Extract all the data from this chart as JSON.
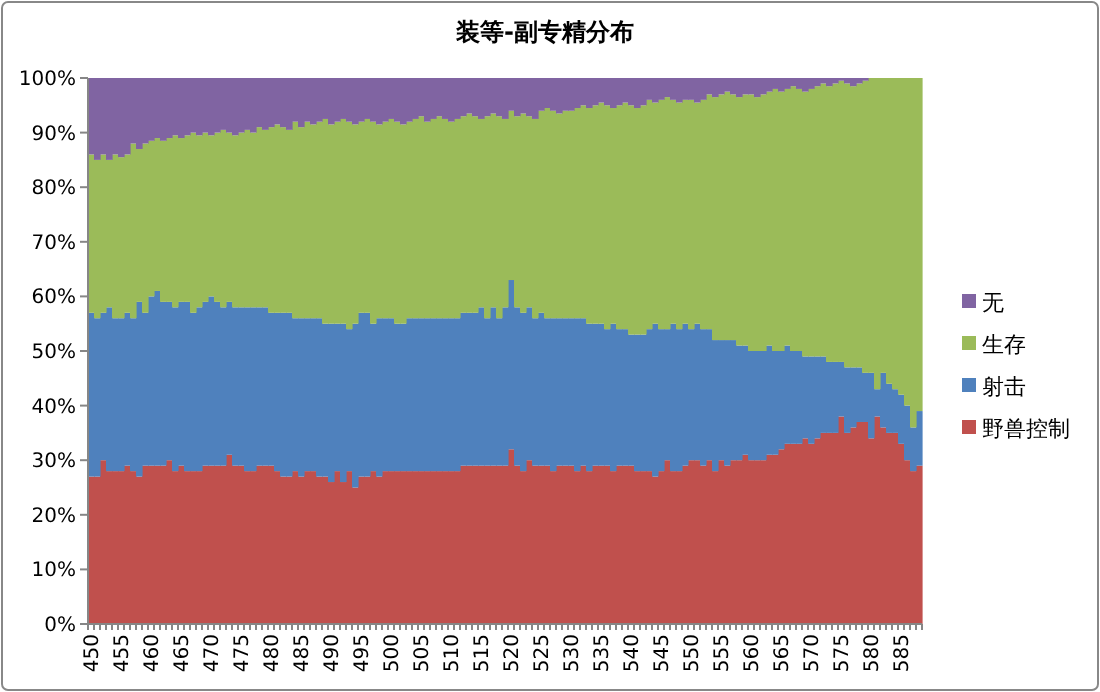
{
  "chart_data": {
    "type": "bar",
    "stacked": true,
    "title": "装等-副专精分布",
    "categories": [
      "450",
      null,
      null,
      null,
      null,
      "455",
      null,
      null,
      null,
      null,
      "460",
      null,
      null,
      null,
      null,
      "465",
      null,
      null,
      null,
      null,
      "470",
      null,
      null,
      null,
      null,
      "475",
      null,
      null,
      null,
      null,
      "480",
      null,
      null,
      null,
      null,
      "485",
      null,
      null,
      null,
      null,
      "490",
      null,
      null,
      null,
      null,
      "495",
      null,
      null,
      null,
      null,
      "500",
      null,
      null,
      null,
      null,
      "505",
      null,
      null,
      null,
      null,
      "510",
      null,
      null,
      null,
      null,
      "515",
      null,
      null,
      null,
      null,
      "520",
      null,
      null,
      null,
      null,
      "525",
      null,
      null,
      null,
      null,
      "530",
      null,
      null,
      null,
      null,
      "535",
      null,
      null,
      null,
      null,
      "540",
      null,
      null,
      null,
      null,
      "545",
      null,
      null,
      null,
      null,
      "550",
      null,
      null,
      null,
      null,
      "555",
      null,
      null,
      null,
      null,
      "560",
      null,
      null,
      null,
      null,
      "565",
      null,
      null,
      null,
      null,
      "570",
      null,
      null,
      null,
      null,
      "575",
      null,
      null,
      null,
      null,
      "580",
      null,
      null,
      null,
      null,
      "585",
      null,
      null,
      null
    ],
    "series": [
      {
        "name": "野兽控制",
        "color": "#c0504d",
        "values": [
          27,
          27,
          30,
          28,
          28,
          28,
          29,
          28,
          27,
          29,
          29,
          29,
          29,
          30,
          28,
          29,
          28,
          28,
          28,
          29,
          29,
          29,
          29,
          31,
          29,
          29,
          28,
          28,
          29,
          29,
          29,
          28,
          27,
          27,
          28,
          27,
          28,
          28,
          27,
          27,
          26,
          28,
          26,
          28,
          25,
          27,
          27,
          28,
          27,
          28,
          28,
          28,
          28,
          28,
          28,
          28,
          28,
          28,
          28,
          28,
          28,
          28,
          29,
          29,
          29,
          29,
          29,
          29,
          29,
          29,
          32,
          29,
          28,
          30,
          29,
          29,
          29,
          28,
          29,
          29,
          29,
          28,
          29,
          28,
          29,
          29,
          29,
          28,
          29,
          29,
          29,
          28,
          28,
          28,
          27,
          28,
          30,
          28,
          28,
          29,
          30,
          30,
          29,
          30,
          28,
          30,
          29,
          30,
          30,
          31,
          30,
          30,
          30,
          31,
          31,
          32,
          33,
          33,
          33,
          34,
          33,
          34,
          35,
          35,
          35,
          38,
          35,
          36,
          37,
          37,
          34,
          38,
          36,
          35,
          35,
          33,
          30,
          28,
          29
        ]
      },
      {
        "name": "射击",
        "color": "#4f81bd",
        "values": [
          30,
          29,
          27,
          30,
          28,
          28,
          28,
          28,
          32,
          28,
          31,
          32,
          30,
          29,
          30,
          30,
          31,
          29,
          30,
          30,
          31,
          30,
          29,
          28,
          29,
          29,
          30,
          30,
          29,
          29,
          28,
          29,
          30,
          30,
          28,
          29,
          28,
          28,
          29,
          28,
          29,
          27,
          29,
          26,
          30,
          30,
          30,
          27,
          29,
          28,
          28,
          27,
          27,
          28,
          28,
          28,
          28,
          28,
          28,
          28,
          28,
          28,
          28,
          28,
          28,
          29,
          27,
          29,
          27,
          29,
          31,
          29,
          29,
          28,
          27,
          28,
          27,
          28,
          27,
          27,
          27,
          28,
          27,
          27,
          26,
          26,
          25,
          27,
          25,
          25,
          24,
          25,
          25,
          26,
          28,
          26,
          24,
          27,
          26,
          26,
          24,
          25,
          25,
          24,
          24,
          22,
          23,
          22,
          21,
          20,
          20,
          20,
          20,
          20,
          19,
          18,
          18,
          17,
          17,
          15,
          16,
          15,
          14,
          13,
          13,
          10,
          12,
          11,
          10,
          9,
          12,
          5,
          10,
          9,
          8,
          9,
          10,
          8,
          10
        ]
      },
      {
        "name": "生存",
        "color": "#9bbb59",
        "values": [
          29,
          29,
          29,
          27,
          30,
          29.5,
          29,
          32,
          28,
          31,
          28.5,
          28,
          29.5,
          30,
          31.5,
          30,
          30.5,
          33,
          31.5,
          31,
          29.5,
          31,
          32.5,
          31,
          31.5,
          32,
          32.5,
          32,
          33,
          32.5,
          34,
          34.5,
          34,
          33.5,
          36,
          35,
          36,
          35.5,
          36,
          37.5,
          36.5,
          37,
          37.5,
          38,
          36.5,
          35,
          35.5,
          37,
          35.5,
          36,
          36.5,
          37,
          36.5,
          36,
          36.5,
          37,
          36,
          36.5,
          37,
          36.5,
          36,
          36.5,
          36,
          36.5,
          36,
          34.5,
          37,
          35.5,
          37,
          34.5,
          31,
          35,
          36.5,
          35,
          36.5,
          37,
          38.5,
          38,
          37.5,
          38,
          38,
          38.5,
          39,
          39.5,
          40,
          40.5,
          41,
          39.5,
          41,
          41.5,
          42,
          41.5,
          42,
          42,
          40.5,
          42,
          42.5,
          41,
          41.5,
          41,
          42,
          40.5,
          42,
          43,
          44.5,
          45,
          45.5,
          45,
          45.5,
          46,
          47,
          46.5,
          47,
          46.5,
          48,
          47.5,
          47,
          48.5,
          48,
          48.5,
          49,
          49.5,
          50,
          50.5,
          51,
          51.5,
          52,
          51.5,
          52,
          53.5,
          54,
          57,
          54,
          56,
          57,
          58,
          60,
          64,
          61
        ]
      },
      {
        "name": "无",
        "color": "#8064a2",
        "values": [
          14,
          15,
          14,
          15,
          14,
          14.5,
          14,
          12,
          13,
          12,
          11.5,
          11,
          11.5,
          11,
          10.5,
          11,
          10.5,
          10,
          10.5,
          10,
          10.5,
          10,
          9.5,
          10,
          10.5,
          10,
          9.5,
          10,
          9,
          9.5,
          9,
          8.5,
          9,
          9.5,
          8,
          9,
          8,
          8.5,
          8,
          7.5,
          8.5,
          8,
          7.5,
          8,
          8.5,
          8,
          7.5,
          8,
          8.5,
          8,
          7.5,
          8,
          8.5,
          8,
          7.5,
          7,
          8,
          7.5,
          7,
          7.5,
          8,
          7.5,
          7,
          6.5,
          7,
          7.5,
          7,
          6.5,
          7,
          7.5,
          6,
          7,
          6.5,
          7,
          7.5,
          6,
          5.5,
          6,
          6.5,
          6,
          6,
          5.5,
          5,
          5.5,
          5,
          4.5,
          5,
          5.5,
          5,
          4.5,
          5,
          5.5,
          5,
          4,
          4.5,
          4,
          3.5,
          4,
          4.5,
          4,
          4,
          4.5,
          4,
          3,
          3.5,
          3,
          2.5,
          3,
          3.5,
          3,
          3,
          3.5,
          3,
          2.5,
          2,
          2.5,
          2,
          1.5,
          2,
          2.5,
          2,
          1.5,
          1,
          1.5,
          1,
          0.5,
          1,
          1.5,
          1,
          0.5,
          0,
          0,
          0,
          0,
          0,
          0,
          0,
          0,
          0
        ]
      }
    ],
    "ylim": [
      0,
      100
    ],
    "yticks": [
      {
        "value": 0,
        "label": "0%"
      },
      {
        "value": 10,
        "label": "10%"
      },
      {
        "value": 20,
        "label": "20%"
      },
      {
        "value": 30,
        "label": "30%"
      },
      {
        "value": 40,
        "label": "40%"
      },
      {
        "value": 50,
        "label": "50%"
      },
      {
        "value": 60,
        "label": "60%"
      },
      {
        "value": 70,
        "label": "70%"
      },
      {
        "value": 80,
        "label": "80%"
      },
      {
        "value": 90,
        "label": "90%"
      },
      {
        "value": 100,
        "label": "100%"
      }
    ],
    "legend": "right"
  }
}
